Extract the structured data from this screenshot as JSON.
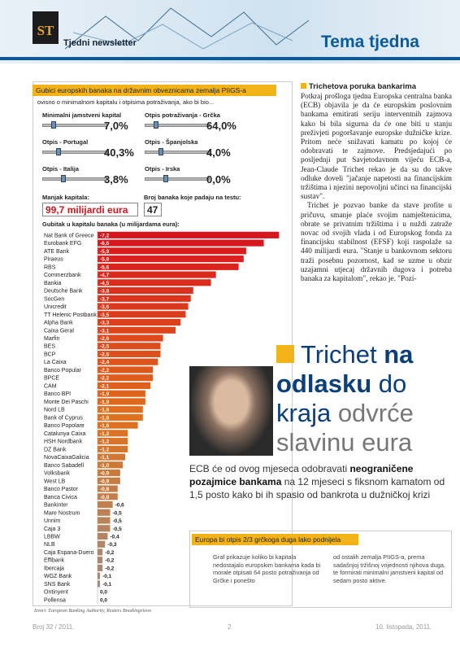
{
  "header": {
    "logo": "ST",
    "newsletter": "Tjedni newsletter",
    "section": "Tema tjedna"
  },
  "widget": {
    "title": "Gubici europskih banaka na državnim obveznicama zemalja PIIGS-a",
    "subtitle": "ovisno o minimalnom kapitalu i otpisima potraživanja, ako bi bio...",
    "sliders": [
      {
        "label": "Minimalni jamstveni kapital",
        "value": "7,0%"
      },
      {
        "label": "Otpis potraživanja - Grčka",
        "value": "64,0%"
      },
      {
        "label": "Otpis - Portugal",
        "value": "40,3%"
      },
      {
        "label": "Otpis - Španjolska",
        "value": "4,0%"
      },
      {
        "label": "Otpis - Italija",
        "value": "3,8%"
      },
      {
        "label": "Otpis - Irska",
        "value": "0,0%"
      }
    ],
    "shortfall_label": "Manjak kapitala:",
    "shortfall": "99,7 milijardi eura",
    "failing_label": "Broj banaka koje padaju na testu:",
    "failing": "47",
    "loss_chart": {
      "type": "bar",
      "title": "Gubitak u kapitalu banaka (u milijardama eura):",
      "categories": [
        "Nat Bank of Greece",
        "Eurobank EFG",
        "ATE Bank",
        "Piraeus",
        "RBS",
        "Commerzbank",
        "Bankia",
        "Deutsche Bank",
        "SocGen",
        "Unicredit",
        "TT Helenic Postbank",
        "Alpha Bank",
        "Caixa Geral",
        "Marfin",
        "BES",
        "BCP",
        "La Caixa",
        "Banco Popular",
        "BPCE",
        "CAM",
        "Banco BPI",
        "Monte Dei Paschi",
        "Nord LB",
        "Bank of Cyprus",
        "Banco Popolare",
        "Catalunya Caixa",
        "HSH Nordbank",
        "DZ Bank",
        "NovaCaixaGalicia",
        "Banco Sabadell",
        "Volksbank",
        "West LB",
        "Banco Pastor",
        "Banca Civica",
        "Bankinter",
        "Mare Nostrum",
        "Unnim",
        "Caja 3",
        "LBBW",
        "NLB",
        "Caja Espana-Duero",
        "Effibank",
        "Ibercaja",
        "WGZ Bank",
        "SNS Bank",
        "Ontinyent",
        "Pollensa"
      ],
      "values": [
        -7.2,
        -6.6,
        -5.9,
        -5.8,
        -5.6,
        -4.7,
        -4.5,
        -3.8,
        -3.7,
        -3.6,
        -3.5,
        -3.3,
        -3.1,
        -2.6,
        -2.5,
        -2.5,
        -2.4,
        -2.2,
        -2.2,
        -2.1,
        -1.9,
        -1.9,
        -1.8,
        -1.8,
        -1.6,
        -1.2,
        -1.2,
        -1.2,
        -1.1,
        -1.0,
        -0.9,
        -0.9,
        -0.8,
        -0.8,
        -0.6,
        -0.5,
        -0.5,
        -0.5,
        -0.4,
        -0.3,
        -0.2,
        -0.2,
        -0.2,
        -0.1,
        -0.1,
        0.0,
        0.0
      ],
      "value_labels": [
        "-7,2",
        "-6,6",
        "-5,9",
        "-5,8",
        "-5,6",
        "-4,7",
        "-4,5",
        "-3,8",
        "-3,7",
        "-3,6",
        "-3,5",
        "-3,3",
        "-3,1",
        "-2,6",
        "-2,5",
        "-2,5",
        "-2,4",
        "-2,2",
        "-2,2",
        "-2,1",
        "-1,9",
        "-1,9",
        "-1,8",
        "-1,8",
        "-1,6",
        "-1,2",
        "-1,2",
        "-1,2",
        "-1,1",
        "-1,0",
        "-0,9",
        "-0,9",
        "-0,8",
        "-0,8",
        "-0,6",
        "-0,5",
        "-0,5",
        "-0,5",
        "-0,4",
        "-0,3",
        "-0,2",
        "-0,2",
        "-0,2",
        "-0,1",
        "-0,1",
        "0,0",
        "0,0"
      ],
      "colors": [
        "#d8141c",
        "#e0701c",
        "#9a8f86"
      ]
    },
    "source": "Izvori: European Banking Authority, Reuters Breakingviews"
  },
  "article": {
    "heading": "Trichetova poruka bankarima",
    "paragraphs": [
      "Potkraj prošloga tjedna Europska centralna banka (ECB) objavila je da će europskim poslovnim bankama emitirati seriju interventnih zajmova kako bi bila sigurna da će one biti u stanju preživjeti pogoršavanje europske dužničke krize. Pritom neće snižavati kamatu po kojoj će odobravati te zajmove. Predsjedajući po posljednji put Savjetodavnom vijeću ECB-a, Jean-Claude Trichet rekao je da su do takve odluke doveli \"jačanje napetosti na financijskim tržištima i njezini nepovoljni učinci na financijski sustav\".",
      "Trichet je pozvao banke da stave profite u pričuvu, smanje plaće svojim namještenicima, obrate se privatnim tržištima i u nuždi zatraže novac od svojih vlada i od Europskog fonda za financijsku stabilnost (EFSF) koji raspolaže sa 440 milijardi eura. \"Stanje u bankovnom sektoru traži posebnu pozornost, kad se uzme u obzir uzajamni utjecaj državnih dugova i potreba banaka za kapitalom\", rekao je. \"Pozi-"
    ]
  },
  "headline": {
    "parts": [
      "Trichet ",
      "na odlasku",
      " do kraja ",
      "odvrće",
      " slavinu eura"
    ]
  },
  "lead": {
    "start": "ECB će od ovog mjeseca odobravati ",
    "bold": "neograničene pozajmice bankama",
    "end": " na 12 mjeseci s fiksnom kamatom od 1,5 posto kako bi ih spasio od bankrota u dužničkoj krizi"
  },
  "callout": {
    "title": "Europa bi otpis 2/3 grčkoga duga lako podnijela",
    "left": "Graf prikazuje koliko bi kapitala nedostajalo europskim bankama kada bi morale otpisati 64 posto potraživanja od Grčke i ponešto",
    "right": "od ostalih zemalja PIIGS-a, prema sadašnjoj tržišnoj vrijednosti njihova duga, te formirati minimalni jamstveni kapital od sedam posto aktive."
  },
  "footer": {
    "issue": "Broj 32 / 2011.",
    "page": "2",
    "date": "10. listopada, 2011."
  }
}
